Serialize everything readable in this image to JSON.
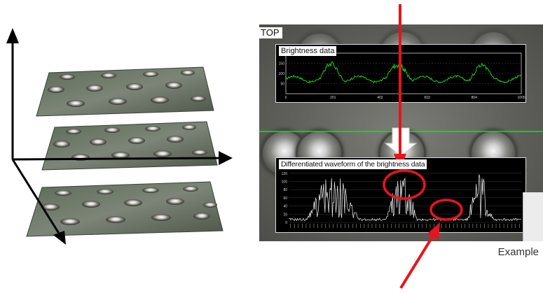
{
  "top_label": "TOP",
  "example_label": "Example",
  "colors": {
    "arrow_red": "#e8141b",
    "trace_green": "#19e019",
    "trace_white": "#f2f2f2",
    "scan_line": "#30d030"
  },
  "chart_data": [
    {
      "type": "line",
      "title": "Brightness data",
      "x_ticks": [
        "0",
        "201",
        "402",
        "603",
        "804",
        "1005"
      ],
      "y_ticks": [
        "150",
        "100",
        "50"
      ],
      "xlim": [
        0,
        1005
      ],
      "ylim": [
        0,
        200
      ],
      "peak_regions": [
        [
          150,
          250
        ],
        [
          430,
          540
        ],
        [
          780,
          880
        ]
      ]
    },
    {
      "type": "line",
      "title": "Differentiated waveform of the brightness data",
      "y_ticks": [
        "120",
        "100",
        "80",
        "60",
        "40",
        "20",
        "0"
      ],
      "ylim": [
        0,
        130
      ],
      "peak_regions": [
        [
          0.08,
          0.3
        ],
        [
          0.42,
          0.55
        ],
        [
          0.77,
          0.88
        ]
      ]
    }
  ]
}
